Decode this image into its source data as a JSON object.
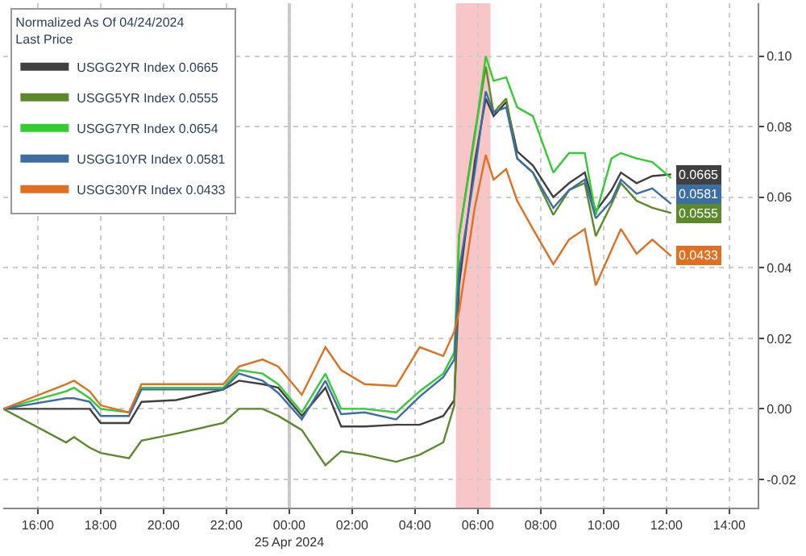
{
  "chart_data": {
    "type": "line",
    "legend_title": "Normalized As Of 04/24/2024\nLast Price",
    "x": [
      "2024-04-24T14:54",
      "2024-04-24T16:54",
      "2024-04-24T17:09",
      "2024-04-24T17:39",
      "2024-04-24T18:00",
      "2024-04-24T18:54",
      "2024-04-24T19:18",
      "2024-04-24T20:24",
      "2024-04-24T21:54",
      "2024-04-24T22:24",
      "2024-04-24T23:09",
      "2024-04-24T23:39",
      "2024-04-25T00:24",
      "2024-04-25T01:09",
      "2024-04-25T01:39",
      "2024-04-25T02:24",
      "2024-04-25T03:24",
      "2024-04-25T04:09",
      "2024-04-25T04:54",
      "2024-04-25T05:15",
      "2024-04-25T05:24",
      "2024-04-25T05:54",
      "2024-04-25T06:15",
      "2024-04-25T06:30",
      "2024-04-25T06:54",
      "2024-04-25T07:15",
      "2024-04-25T07:45",
      "2024-04-25T08:24",
      "2024-04-25T08:54",
      "2024-04-25T09:24",
      "2024-04-25T09:45",
      "2024-04-25T10:15",
      "2024-04-25T10:33",
      "2024-04-25T11:03",
      "2024-04-25T11:33",
      "2024-04-25T12:09"
    ],
    "series": [
      {
        "name": "USGG2YR Index 0.0665",
        "color": "#404040",
        "values": [
          0,
          0,
          0,
          0,
          -0.004,
          -0.004,
          0.002,
          0.0025,
          0.0055,
          0.008,
          0.007,
          0.006,
          -0.002,
          0.006,
          -0.005,
          -0.005,
          -0.0045,
          -0.0045,
          -0.002,
          0.0025,
          0.035,
          0.07,
          0.088,
          0.083,
          0.087,
          0.073,
          0.069,
          0.06,
          0.064,
          0.067,
          0.056,
          0.062,
          0.067,
          0.064,
          0.066,
          0.0665
        ],
        "value_labels": [
          null,
          null,
          null,
          null,
          null,
          null,
          null,
          null,
          null,
          null,
          null,
          null,
          null,
          null,
          null,
          null,
          null,
          null,
          null,
          null,
          null,
          null,
          null,
          null,
          null,
          null,
          null,
          null,
          null,
          null,
          null,
          null,
          null,
          null,
          null,
          "0.0665"
        ]
      },
      {
        "name": "USGG5YR Index 0.0555",
        "color": "#5a8a2a",
        "values": [
          0,
          -0.0095,
          -0.008,
          -0.011,
          -0.0125,
          -0.014,
          -0.009,
          -0.007,
          -0.004,
          0.0,
          0.0,
          -0.002,
          -0.006,
          -0.016,
          -0.012,
          -0.013,
          -0.015,
          -0.013,
          -0.0095,
          0.001,
          0.049,
          0.078,
          0.097,
          0.084,
          0.088,
          0.071,
          0.067,
          0.055,
          0.062,
          0.064,
          0.049,
          0.058,
          0.064,
          0.059,
          0.057,
          0.0555
        ],
        "value_labels": [
          null,
          null,
          null,
          null,
          null,
          null,
          null,
          null,
          null,
          null,
          null,
          null,
          null,
          null,
          null,
          null,
          null,
          null,
          null,
          null,
          null,
          null,
          null,
          null,
          null,
          null,
          null,
          null,
          null,
          null,
          null,
          null,
          null,
          null,
          null,
          "0.0555"
        ]
      },
      {
        "name": "USGG7YR Index 0.0654",
        "color": "#33cc33",
        "values": [
          0,
          0.005,
          0.006,
          0.003,
          0.0,
          -0.001,
          0.006,
          0.006,
          0.006,
          0.011,
          0.01,
          0.007,
          -0.001,
          0.01,
          0.0,
          0.0,
          -0.001,
          0.005,
          0.01,
          0.016,
          0.049,
          0.077,
          0.1,
          0.093,
          0.094,
          0.0855,
          0.083,
          0.067,
          0.0725,
          0.0725,
          0.055,
          0.071,
          0.0725,
          0.071,
          0.07,
          0.0654
        ]
      },
      {
        "name": "USGG10YR Index 0.0581",
        "color": "#3a6ea5",
        "values": [
          0,
          0.003,
          0.003,
          0.002,
          -0.002,
          -0.002,
          0.0055,
          0.0055,
          0.0055,
          0.01,
          0.008,
          0.0045,
          -0.003,
          0.008,
          -0.0015,
          -0.001,
          -0.003,
          0.0035,
          0.009,
          0.014,
          0.039,
          0.067,
          0.09,
          0.084,
          0.0855,
          0.071,
          0.067,
          0.057,
          0.062,
          0.065,
          0.054,
          0.059,
          0.065,
          0.061,
          0.0625,
          0.0581
        ],
        "value_labels": [
          null,
          null,
          null,
          null,
          null,
          null,
          null,
          null,
          null,
          null,
          null,
          null,
          null,
          null,
          null,
          null,
          null,
          null,
          null,
          null,
          null,
          null,
          null,
          null,
          null,
          null,
          null,
          null,
          null,
          null,
          null,
          null,
          null,
          null,
          null,
          "0.0581"
        ]
      },
      {
        "name": "USGG30YR Index 0.0433",
        "color": "#e07020",
        "values": [
          0,
          0.007,
          0.008,
          0.005,
          0.001,
          -0.001,
          0.007,
          0.007,
          0.007,
          0.012,
          0.014,
          0.012,
          0.004,
          0.0175,
          0.011,
          0.007,
          0.0065,
          0.0175,
          0.015,
          0.022,
          0.0275,
          0.057,
          0.072,
          0.065,
          0.068,
          0.059,
          0.051,
          0.041,
          0.048,
          0.051,
          0.035,
          0.045,
          0.051,
          0.044,
          0.048,
          0.0433
        ],
        "value_labels": [
          null,
          null,
          null,
          null,
          null,
          null,
          null,
          null,
          null,
          null,
          null,
          null,
          null,
          null,
          null,
          null,
          null,
          null,
          null,
          null,
          null,
          null,
          null,
          null,
          null,
          null,
          null,
          null,
          null,
          null,
          null,
          null,
          null,
          null,
          null,
          "0.0433"
        ]
      }
    ],
    "xlim": [
      "2024-04-24T14:54",
      "2024-04-25T14:54"
    ],
    "xticks": [
      {
        "value": "2024-04-24T16:00",
        "label": "16:00"
      },
      {
        "value": "2024-04-24T18:00",
        "label": "18:00"
      },
      {
        "value": "2024-04-24T20:00",
        "label": "20:00"
      },
      {
        "value": "2024-04-24T22:00",
        "label": "22:00"
      },
      {
        "value": "2024-04-25T00:00",
        "label": "00:00\n25 Apr 2024"
      },
      {
        "value": "2024-04-25T02:00",
        "label": "02:00"
      },
      {
        "value": "2024-04-25T04:00",
        "label": "04:00"
      },
      {
        "value": "2024-04-25T06:00",
        "label": "06:00"
      },
      {
        "value": "2024-04-25T08:00",
        "label": "08:00"
      },
      {
        "value": "2024-04-25T10:00",
        "label": "10:00"
      },
      {
        "value": "2024-04-25T12:00",
        "label": "12:00"
      },
      {
        "value": "2024-04-25T14:00",
        "label": "14:00"
      }
    ],
    "ylim": [
      -0.028,
      0.115
    ],
    "yticks": [
      {
        "value": -0.02,
        "label": "-0.02"
      },
      {
        "value": 0,
        "label": "0.00"
      },
      {
        "value": 0.02,
        "label": "0.02"
      },
      {
        "value": 0.04,
        "label": "0.04"
      },
      {
        "value": 0.06,
        "label": "0.06"
      },
      {
        "value": 0.08,
        "label": "0.08"
      },
      {
        "value": 0.1,
        "label": "0.10"
      }
    ],
    "ref_lines": [
      {
        "axis": "x",
        "value": "2024-04-25T00:00",
        "color": "#c8c8c8"
      }
    ],
    "bands": [
      {
        "axis": "x",
        "from": "2024-04-25T05:18",
        "to": "2024-04-25T06:24",
        "color": "#f4a0a0"
      }
    ],
    "grid": true,
    "legend": "top left",
    "line_style": "solid",
    "marker": "none"
  }
}
